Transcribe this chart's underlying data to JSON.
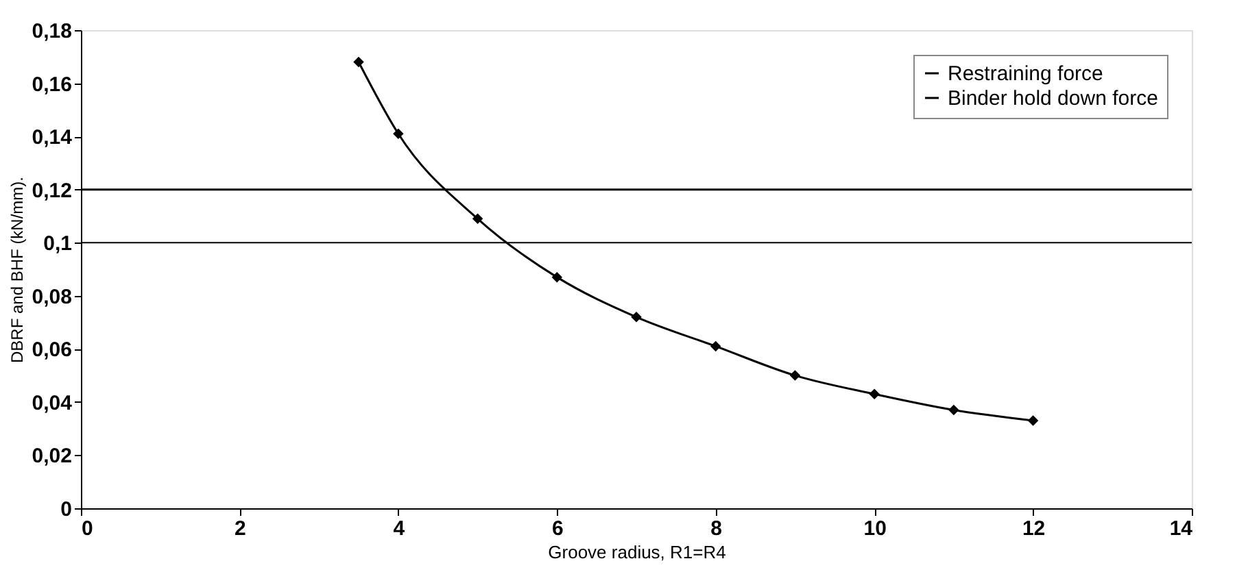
{
  "chart_data": {
    "type": "line",
    "xlabel": "Groove radius, R1=R4",
    "ylabel": "DBRF and BHF (kN/mm).",
    "xlim": [
      0,
      14
    ],
    "xticks": [
      0,
      2,
      4,
      6,
      8,
      10,
      12,
      14
    ],
    "ylim": [
      0,
      0.18
    ],
    "yticks": [
      0,
      {
        "value": 0.02,
        "label": "0,02"
      },
      {
        "value": 0.04,
        "label": "0,04"
      },
      {
        "value": 0.06,
        "label": "0,06"
      },
      {
        "value": 0.08,
        "label": "0,08"
      },
      {
        "value": 0.1,
        "label": "0,1"
      },
      {
        "value": 0.12,
        "label": "0,12"
      },
      {
        "value": 0.14,
        "label": "0,14"
      },
      {
        "value": 0.16,
        "label": "0,16"
      },
      {
        "value": 0.18,
        "label": "0,18"
      }
    ],
    "series": [
      {
        "name": "Restraining force",
        "color": "#000000",
        "marker": "diamond",
        "x": [
          3.5,
          4,
          5,
          6,
          7,
          8,
          9,
          10,
          11,
          12
        ],
        "values": [
          0.168,
          0.141,
          0.109,
          0.087,
          0.072,
          0.061,
          0.05,
          0.043,
          0.037,
          0.033
        ]
      },
      {
        "name": "Binder hold down force",
        "color": "#000000",
        "marker": "none",
        "x": [
          0,
          14
        ],
        "values": [
          0.12,
          0.12
        ]
      }
    ],
    "ref_lines": [
      {
        "axis": "y",
        "value": 0.1,
        "color": "#000000"
      }
    ],
    "grid": false,
    "legend": "top right"
  }
}
